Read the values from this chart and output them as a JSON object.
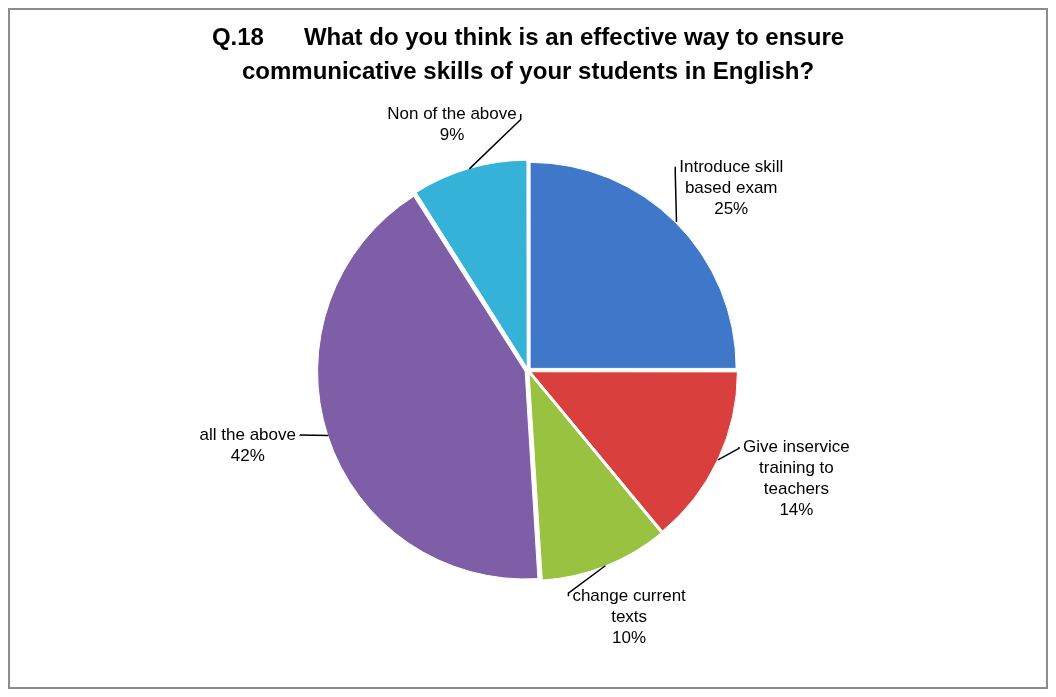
{
  "chart_data": {
    "type": "pie",
    "title": "Q.18      What do you think is an effective way to ensure communicative skills of your students in English?",
    "categories": [
      "Introduce skill based exam",
      "Give inservice training to teachers",
      "change current texts",
      "all the above",
      "Non of the above"
    ],
    "values": [
      25,
      14,
      10,
      42,
      9
    ],
    "value_labels": [
      "25%",
      "14%",
      "10%",
      "42%",
      "9%"
    ],
    "colors": [
      "#3f78c8",
      "#d9403d",
      "#98c23f",
      "#7f5ea8",
      "#35b2d8"
    ],
    "legend": false
  }
}
